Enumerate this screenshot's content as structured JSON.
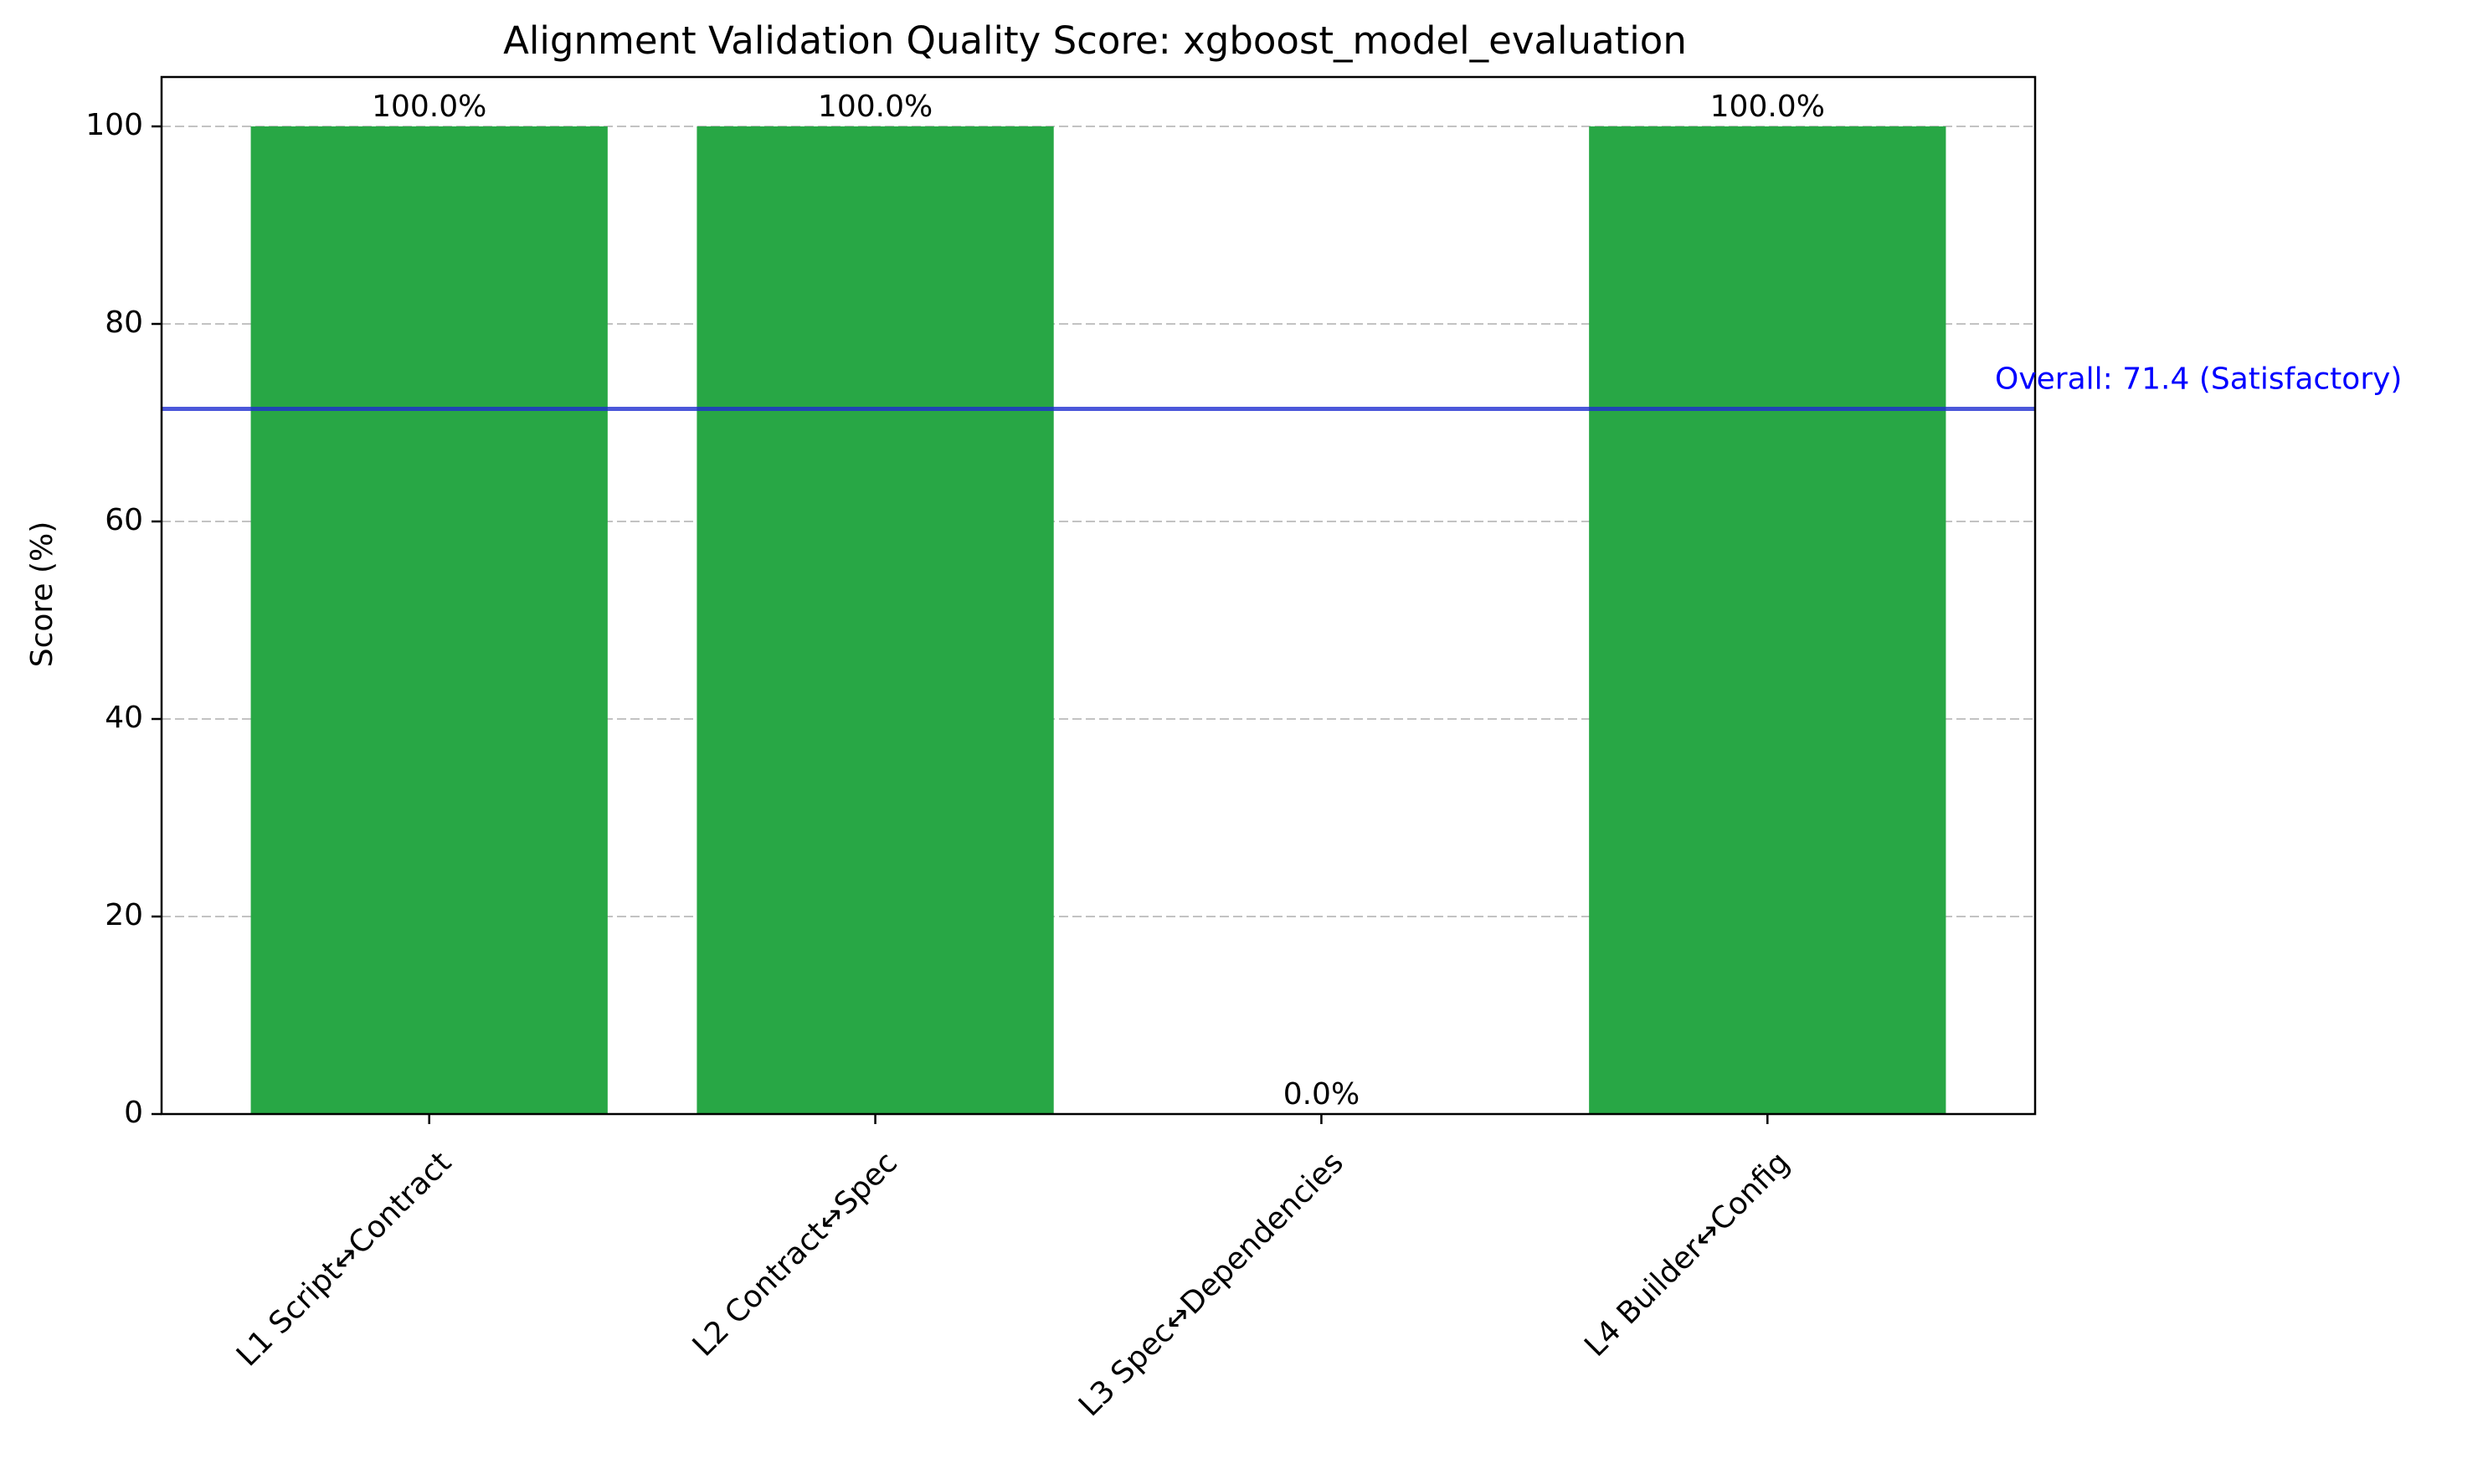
{
  "chart_data": {
    "type": "bar",
    "title": "Alignment Validation Quality Score: xgboost_model_evaluation",
    "xlabel": "",
    "ylabel": "Score (%)",
    "categories": [
      "L1 Script↔Contract",
      "L2 Contract↔Spec",
      "L3 Spec↔Dependencies",
      "L4 Builder↔Config"
    ],
    "values": [
      100.0,
      100.0,
      0.0,
      100.0
    ],
    "value_labels": [
      "100.0%",
      "100.0%",
      "0.0%",
      "100.0%"
    ],
    "ylim": [
      0,
      105
    ],
    "yticks": [
      0,
      20,
      40,
      60,
      80,
      100
    ],
    "grid": "y-dashed",
    "bar_color": "#28a745",
    "reference_line": {
      "value": 71.4,
      "label": "Overall: 71.4 (Satisfactory)",
      "color": "#1f2fd1",
      "label_color": "#0000ff"
    }
  }
}
